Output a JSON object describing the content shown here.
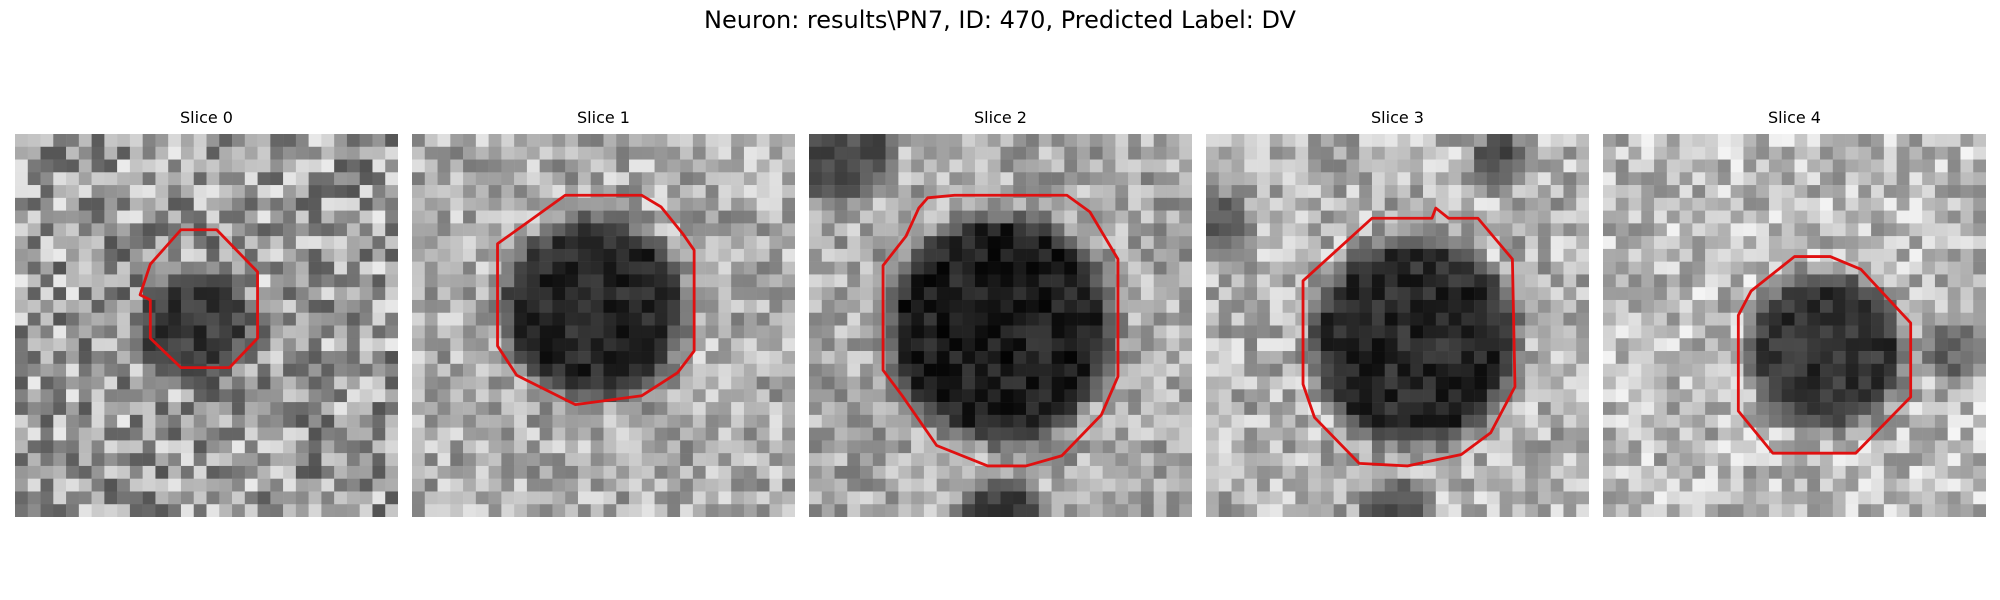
{
  "figure": {
    "title": "Neuron: results\\PN7, ID: 470, Predicted Label: DV"
  },
  "slices": [
    {
      "title": "Slice 0"
    },
    {
      "title": "Slice 1"
    },
    {
      "title": "Slice 2"
    },
    {
      "title": "Slice 3"
    },
    {
      "title": "Slice 4"
    }
  ],
  "colors": {
    "contour": "#e01010",
    "background": "#ffffff"
  }
}
